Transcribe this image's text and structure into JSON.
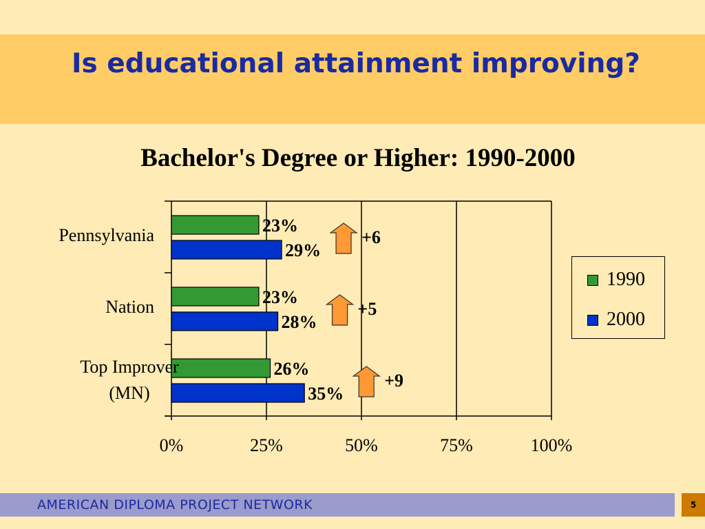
{
  "slide": {
    "title": "Is educational attainment improving?",
    "footer": "AMERICAN DIPLOMA PROJECT NETWORK",
    "page_number": "5"
  },
  "colors": {
    "background": "#FFEBB5",
    "title_band": "#FFCC66",
    "title_text": "#1A2AA0",
    "series_1990": "#339933",
    "series_2000": "#0033CC",
    "arrow": "#FF9933",
    "footer_bar": "#9B9BCC",
    "page_box": "#CC7A00"
  },
  "chart_data": {
    "type": "bar",
    "orientation": "horizontal",
    "title": "Bachelor's Degree or Higher: 1990-2000",
    "categories": [
      "Pennsylvania",
      "Nation",
      "Top Improver (MN)"
    ],
    "category_lines": [
      [
        "Pennsylvania"
      ],
      [
        "Nation"
      ],
      [
        "Top Improver",
        "(MN)"
      ]
    ],
    "series": [
      {
        "name": "1990",
        "values": [
          23,
          23,
          26
        ],
        "labels": [
          "23%",
          "23%",
          "26%"
        ]
      },
      {
        "name": "2000",
        "values": [
          29,
          28,
          35
        ],
        "labels": [
          "29%",
          "28%",
          "35%"
        ]
      }
    ],
    "changes": [
      "+6",
      "+5",
      "+9"
    ],
    "xlim": [
      0,
      100
    ],
    "xticks": [
      0,
      25,
      50,
      75,
      100
    ],
    "xtick_labels": [
      "0%",
      "25%",
      "50%",
      "75%",
      "100%"
    ],
    "grid": true,
    "legend_position": "right"
  }
}
